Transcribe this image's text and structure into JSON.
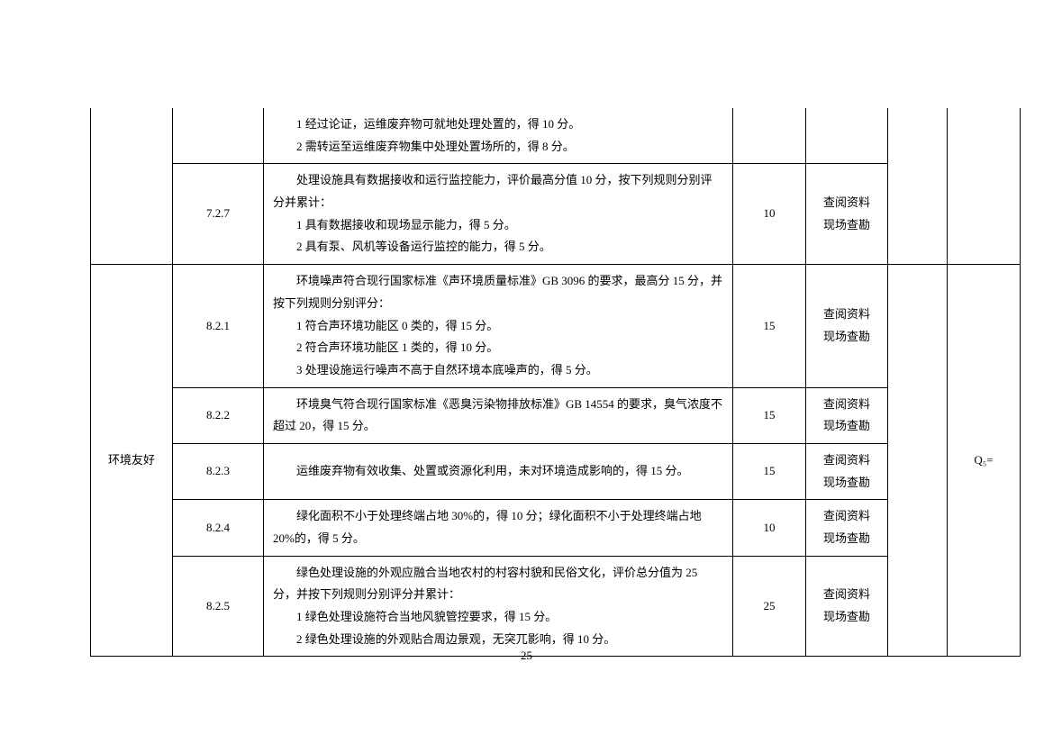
{
  "page_number": "25",
  "table": {
    "rows": [
      {
        "category": "",
        "num": "",
        "desc_lines": [
          "1 经过论证，运维废弃物可就地处理处置的，得 10 分。",
          "2 需转运至运维废弃物集中处理处置场所的，得 8 分。"
        ],
        "score": "",
        "method_lines": [],
        "empty": "",
        "q": ""
      },
      {
        "category": "",
        "num": "7.2.7",
        "desc_lines": [
          "处理设施具有数据接收和运行监控能力，评价最高分值 10 分，按下列规则分别评分并累计：",
          "1 具有数据接收和现场显示能力，得 5 分。",
          "2 具有泵、风机等设备运行监控的能力，得 5 分。"
        ],
        "score": "10",
        "method_lines": [
          "查阅资料",
          "现场查勘"
        ],
        "empty": "",
        "q": ""
      },
      {
        "category": "环境友好",
        "num": "8.2.1",
        "desc_lines": [
          "环境噪声符合现行国家标准《声环境质量标准》GB 3096 的要求，最高分 15 分，并按下列规则分别评分：",
          "1 符合声环境功能区 0 类的，得 15 分。",
          "2 符合声环境功能区 1 类的，得 10 分。",
          "3 处理设施运行噪声不高于自然环境本底噪声的，得 5 分。"
        ],
        "score": "15",
        "method_lines": [
          "查阅资料",
          "现场查勘"
        ],
        "empty": "",
        "q": "Q₅="
      },
      {
        "category": "",
        "num": "8.2.2",
        "desc_lines": [
          "环境臭气符合现行国家标准《恶臭污染物排放标准》GB 14554 的要求，臭气浓度不超过 20，得 15 分。"
        ],
        "score": "15",
        "method_lines": [
          "查阅资料",
          "现场查勘"
        ],
        "empty": "",
        "q": ""
      },
      {
        "category": "",
        "num": "8.2.3",
        "desc_lines": [
          "运维废弃物有效收集、处置或资源化利用，未对环境造成影响的，得 15 分。"
        ],
        "score": "15",
        "method_lines": [
          "查阅资料",
          "现场查勘"
        ],
        "empty": "",
        "q": ""
      },
      {
        "category": "",
        "num": "8.2.4",
        "desc_lines": [
          "绿化面积不小于处理终端占地 30%的，得 10 分；绿化面积不小于处理终端占地 20%的，得 5 分。"
        ],
        "score": "10",
        "method_lines": [
          "查阅资料",
          "现场查勘"
        ],
        "empty": "",
        "q": ""
      },
      {
        "category": "",
        "num": "8.2.5",
        "desc_lines": [
          "绿色处理设施的外观应融合当地农村的村容村貌和民俗文化，评价总分值为 25 分，并按下列规则分别评分并累计：",
          "1 绿色处理设施符合当地风貌管控要求，得 15 分。",
          "2 绿色处理设施的外观贴合周边景观，无突兀影响，得 10 分。"
        ],
        "score": "25",
        "method_lines": [
          "查阅资料",
          "现场查勘"
        ],
        "empty": "",
        "q": ""
      }
    ]
  }
}
